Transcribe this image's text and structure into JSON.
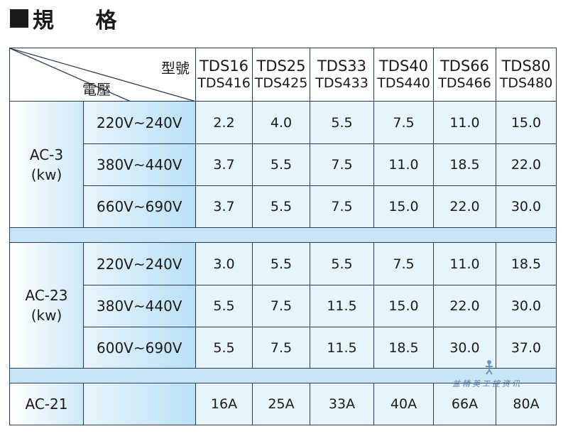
{
  "title": "規 格",
  "header": {
    "corner_model_label": "型號",
    "corner_voltage_label": "電壓",
    "models": [
      {
        "main": "TDS16",
        "sub": "TDS416"
      },
      {
        "main": "TDS25",
        "sub": "TDS425"
      },
      {
        "main": "TDS33",
        "sub": "TDS433"
      },
      {
        "main": "TDS40",
        "sub": "TDS440"
      },
      {
        "main": "TDS66",
        "sub": "TDS466"
      },
      {
        "main": "TDS80",
        "sub": "TDS480"
      }
    ]
  },
  "ac3": {
    "label_line1": "AC-3",
    "label_line2": "(kw)",
    "rows": [
      {
        "voltage": "220V~240V",
        "values": [
          "2.2",
          "4.0",
          "5.5",
          "7.5",
          "11.0",
          "15.0"
        ]
      },
      {
        "voltage": "380V~440V",
        "values": [
          "3.7",
          "5.5",
          "7.5",
          "11.0",
          "18.5",
          "22.0"
        ]
      },
      {
        "voltage": "660V~690V",
        "values": [
          "3.7",
          "5.5",
          "7.5",
          "15.0",
          "22.0",
          "30.0"
        ]
      }
    ]
  },
  "ac23": {
    "label_line1": "AC-23",
    "label_line2": "(kw)",
    "rows": [
      {
        "voltage": "220V~240V",
        "values": [
          "3.0",
          "5.5",
          "5.5",
          "7.5",
          "11.0",
          "18.5"
        ]
      },
      {
        "voltage": "380V~440V",
        "values": [
          "5.5",
          "7.5",
          "11.5",
          "15.0",
          "22.0",
          "30.0"
        ]
      },
      {
        "voltage": "600V~690V",
        "values": [
          "5.5",
          "7.5",
          "11.5",
          "18.5",
          "30.0",
          "37.0"
        ]
      }
    ]
  },
  "ac21": {
    "label": "AC-21",
    "values": [
      "16A",
      "25A",
      "33A",
      "40A",
      "66A",
      "80A"
    ]
  },
  "watermark_text": "益精美工控资讯",
  "colors": {
    "border": "#2a3b52",
    "cell": "#e6f4fb",
    "separator": "#c7e5f5"
  }
}
